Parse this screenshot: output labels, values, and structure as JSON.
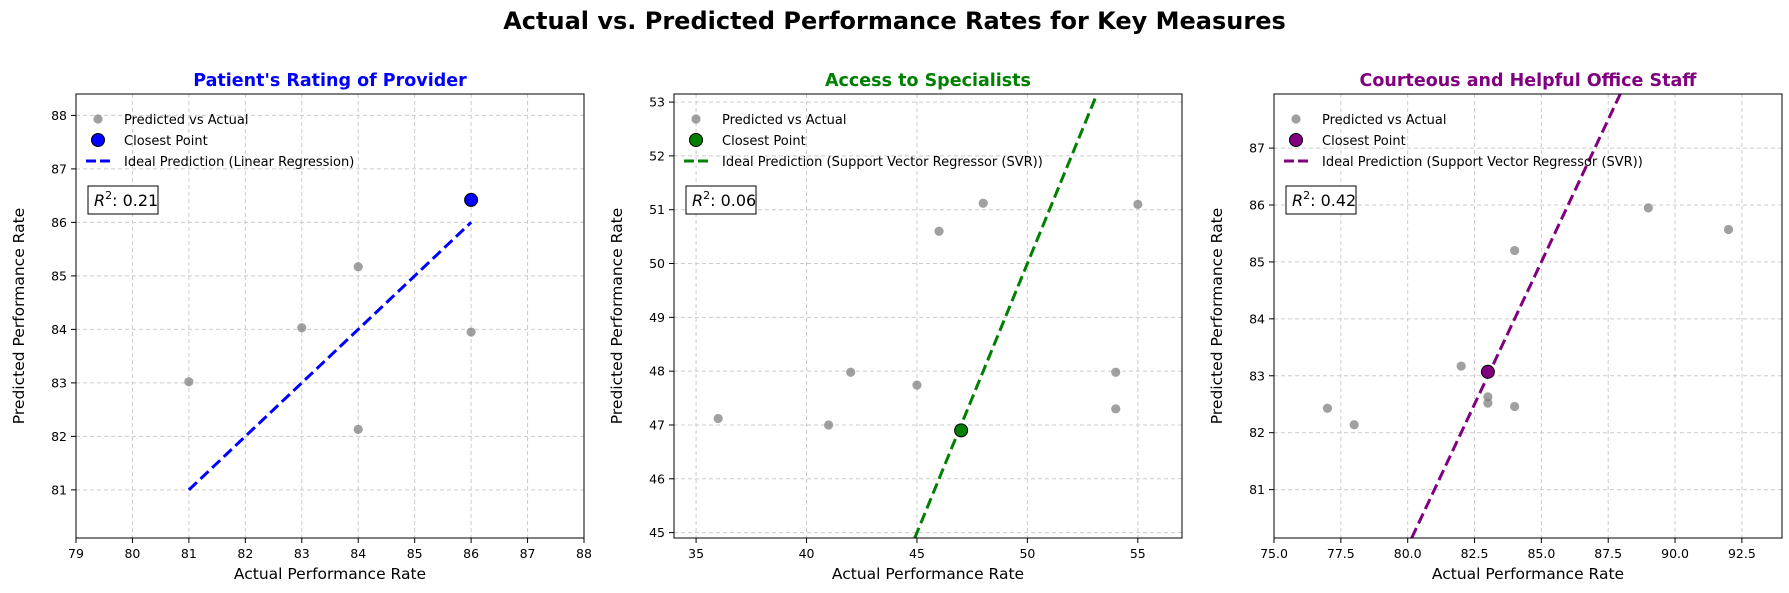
{
  "figure": {
    "title": "Actual vs. Predicted Performance Rates for Key Measures"
  },
  "chart_data": [
    {
      "type": "scatter",
      "title": "Patient's Rating of Provider",
      "title_color": "#0000ff",
      "accent_color": "#0000ff",
      "xlabel": "Actual Performance Rate",
      "ylabel": "Predicted Performance Rate",
      "xlim": [
        79,
        88
      ],
      "ylim": [
        80.1,
        88.4
      ],
      "xticks": [
        "79",
        "80",
        "81",
        "82",
        "83",
        "84",
        "85",
        "86",
        "87",
        "88"
      ],
      "yticks": [
        "81",
        "82",
        "83",
        "84",
        "85",
        "86",
        "87",
        "88"
      ],
      "xtick_values": [
        79,
        80,
        81,
        82,
        83,
        84,
        85,
        86,
        87,
        88
      ],
      "ytick_values": [
        81,
        82,
        83,
        84,
        85,
        86,
        87,
        88
      ],
      "grid": true,
      "legend_position": "top-left",
      "legend": {
        "points": "Predicted vs Actual",
        "closest": "Closest Point",
        "line": "Ideal Prediction (Linear Regression)"
      },
      "r2_label": "R",
      "r2_value": ": 0.21",
      "points": [
        {
          "x": 81,
          "y": 83.02
        },
        {
          "x": 83,
          "y": 84.03
        },
        {
          "x": 84,
          "y": 85.17
        },
        {
          "x": 84,
          "y": 82.13
        },
        {
          "x": 86,
          "y": 83.95
        }
      ],
      "closest_point": {
        "x": 86,
        "y": 86.42
      },
      "line": {
        "x": [
          81,
          86
        ],
        "y": [
          81,
          86
        ]
      }
    },
    {
      "type": "scatter",
      "title": "Access to Specialists",
      "title_color": "#008000",
      "accent_color": "#008000",
      "xlabel": "Actual Performance Rate",
      "ylabel": "Predicted Performance Rate",
      "xlim": [
        34,
        57
      ],
      "ylim": [
        44.9,
        53.15
      ],
      "xticks": [
        "35",
        "40",
        "45",
        "50",
        "55"
      ],
      "yticks": [
        "45",
        "46",
        "47",
        "48",
        "49",
        "50",
        "51",
        "52",
        "53"
      ],
      "xtick_values": [
        35,
        40,
        45,
        50,
        55
      ],
      "ytick_values": [
        45,
        46,
        47,
        48,
        49,
        50,
        51,
        52,
        53
      ],
      "grid": true,
      "legend_position": "top-left",
      "legend": {
        "points": "Predicted vs Actual",
        "closest": "Closest Point",
        "line": "Ideal Prediction (Support Vector Regressor (SVR))"
      },
      "r2_label": "R",
      "r2_value": ": 0.06",
      "points": [
        {
          "x": 36,
          "y": 47.12
        },
        {
          "x": 41,
          "y": 47.0
        },
        {
          "x": 42,
          "y": 47.98
        },
        {
          "x": 45,
          "y": 47.74
        },
        {
          "x": 46,
          "y": 50.6
        },
        {
          "x": 48,
          "y": 51.12
        },
        {
          "x": 54,
          "y": 47.98
        },
        {
          "x": 54,
          "y": 47.3
        },
        {
          "x": 55,
          "y": 51.1
        }
      ],
      "closest_point": {
        "x": 47,
        "y": 46.9
      },
      "line": {
        "x": [
          44.9,
          53.15
        ],
        "y": [
          44.9,
          53.15
        ]
      }
    },
    {
      "type": "scatter",
      "title": "Courteous and Helpful Office Staff",
      "title_color": "#800080",
      "accent_color": "#800080",
      "xlabel": "Actual Performance Rate",
      "ylabel": "Predicted Performance Rate",
      "xlim": [
        75,
        94
      ],
      "ylim": [
        80.15,
        87.95
      ],
      "xticks": [
        "75.0",
        "77.5",
        "80.0",
        "82.5",
        "85.0",
        "87.5",
        "90.0",
        "92.5"
      ],
      "yticks": [
        "81",
        "82",
        "83",
        "84",
        "85",
        "86",
        "87"
      ],
      "xtick_values": [
        75,
        77.5,
        80,
        82.5,
        85,
        87.5,
        90,
        92.5
      ],
      "ytick_values": [
        81,
        82,
        83,
        84,
        85,
        86,
        87
      ],
      "grid": true,
      "legend_position": "top-left",
      "legend": {
        "points": "Predicted vs Actual",
        "closest": "Closest Point",
        "line": "Ideal Prediction (Support Vector Regressor (SVR))"
      },
      "r2_label": "R",
      "r2_value": ": 0.42",
      "points": [
        {
          "x": 77,
          "y": 82.43
        },
        {
          "x": 78,
          "y": 82.14
        },
        {
          "x": 82,
          "y": 83.17
        },
        {
          "x": 83,
          "y": 82.63
        },
        {
          "x": 83,
          "y": 82.52
        },
        {
          "x": 84,
          "y": 82.46
        },
        {
          "x": 84,
          "y": 85.2
        },
        {
          "x": 89,
          "y": 85.95
        },
        {
          "x": 92,
          "y": 85.57
        }
      ],
      "closest_point": {
        "x": 83,
        "y": 83.07
      },
      "line": {
        "x": [
          80.15,
          87.95
        ],
        "y": [
          80.15,
          87.95
        ]
      }
    }
  ]
}
